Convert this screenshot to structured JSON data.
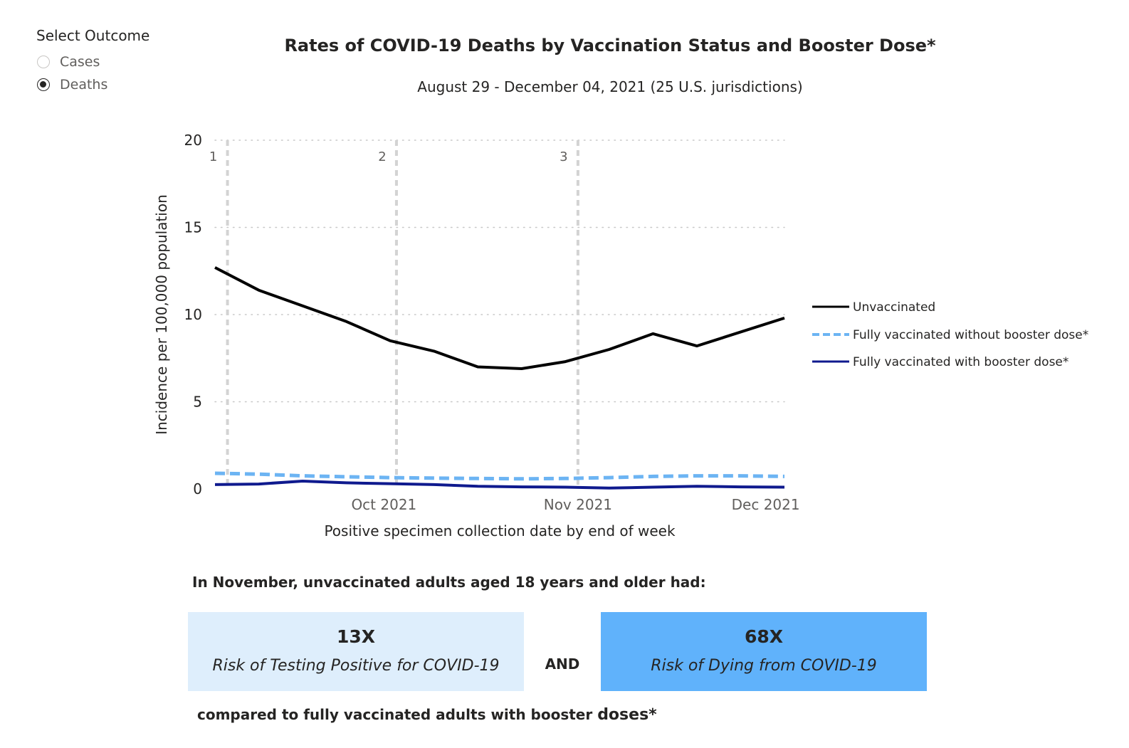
{
  "selector": {
    "title": "Select Outcome",
    "options": [
      {
        "label": "Cases",
        "selected": false
      },
      {
        "label": "Deaths",
        "selected": true
      }
    ]
  },
  "chart_data": {
    "type": "line",
    "title": "Rates of COVID-19 Deaths by Vaccination Status and Booster Dose*",
    "subtitle": "August 29 - December 04, 2021 (25 U.S. jurisdictions)",
    "xlabel": "Positive specimen collection date by end of week",
    "ylabel": "Incidence per 100,000 population",
    "ylim": [
      0,
      20
    ],
    "yticks": [
      0,
      5,
      10,
      15,
      20
    ],
    "xlim": [
      "2021-09-04",
      "2021-12-04"
    ],
    "xticks": [
      {
        "date": "2021-10-01",
        "label": "Oct 2021"
      },
      {
        "date": "2021-11-01",
        "label": "Nov 2021"
      },
      {
        "date": "2021-12-01",
        "label": "Dec 2021"
      }
    ],
    "grid": true,
    "legend_position": "right",
    "markers": [
      {
        "label": "1",
        "date": "2021-09-06"
      },
      {
        "label": "2",
        "date": "2021-10-03"
      },
      {
        "label": "3",
        "date": "2021-11-01"
      }
    ],
    "x": [
      "2021-09-04",
      "2021-09-11",
      "2021-09-18",
      "2021-09-25",
      "2021-10-02",
      "2021-10-09",
      "2021-10-16",
      "2021-10-23",
      "2021-10-30",
      "2021-11-06",
      "2021-11-13",
      "2021-11-20",
      "2021-11-27",
      "2021-12-04"
    ],
    "series": [
      {
        "name": "Unvaccinated",
        "color": "#000000",
        "dash": "solid",
        "values": [
          12.7,
          11.4,
          10.5,
          9.6,
          8.5,
          7.9,
          7.0,
          6.9,
          7.3,
          8.0,
          8.9,
          8.2,
          null,
          9.8
        ]
      },
      {
        "name": "Fully vaccinated without booster dose*",
        "color": "#6cb4f3",
        "dash": "dashed",
        "values": [
          0.9,
          0.85,
          0.75,
          0.7,
          0.65,
          0.62,
          0.6,
          0.58,
          0.6,
          0.65,
          0.72,
          0.75,
          0.75,
          0.72
        ]
      },
      {
        "name": "Fully vaccinated with booster dose*",
        "color": "#0f1a8e",
        "dash": "solid",
        "values": [
          0.25,
          0.28,
          0.45,
          0.35,
          0.3,
          0.25,
          0.15,
          0.12,
          0.1,
          0.05,
          0.1,
          0.15,
          0.12,
          0.1
        ]
      }
    ]
  },
  "summary": {
    "heading": "In November, unvaccinated adults aged 18 years and older had:",
    "left_value": "13X",
    "left_text": "Risk of Testing Positive for COVID-19",
    "connector": "AND",
    "right_value": "68X",
    "right_text": "Risk of Dying from COVID-19",
    "footer_prefix": "compared to fully vaccinated adults with booster ",
    "footer_emph": "doses*",
    "left_color": "#deeefc",
    "right_color": "#60b2fb"
  }
}
